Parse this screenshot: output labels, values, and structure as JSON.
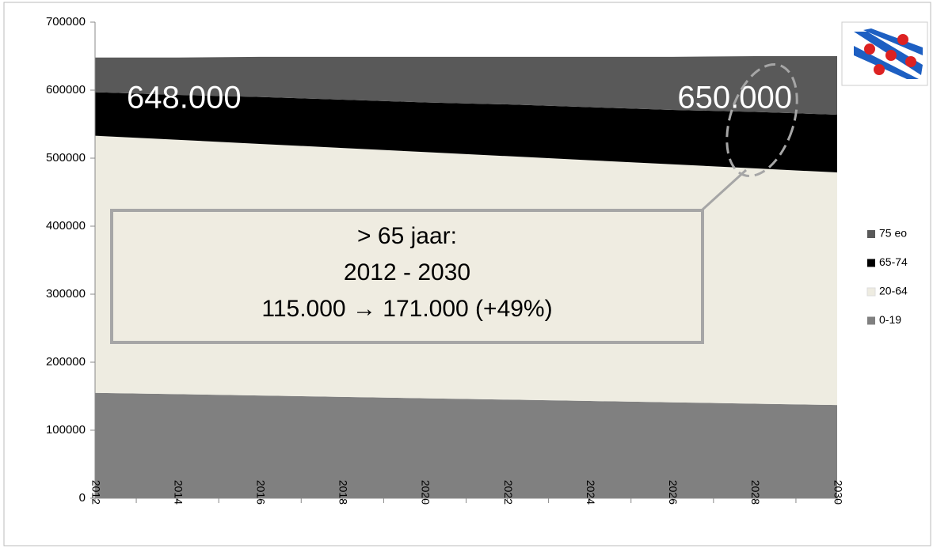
{
  "chart_data": {
    "type": "stacked_area",
    "x": [
      2012,
      2014,
      2016,
      2018,
      2020,
      2022,
      2024,
      2026,
      2028,
      2030
    ],
    "series": [
      {
        "name": "0-19",
        "color": "#808080",
        "values": [
          155000,
          153000,
          151000,
          149000,
          147000,
          145000,
          143000,
          141000,
          139000,
          137000
        ]
      },
      {
        "name": "20-64",
        "color": "#eeece1",
        "values": [
          378000,
          374000,
          370000,
          366000,
          362000,
          358000,
          354000,
          350000,
          346000,
          342000
        ]
      },
      {
        "name": "65-74",
        "color": "#000000",
        "values": [
          64000,
          66000,
          69000,
          71000,
          73000,
          76000,
          78000,
          80000,
          83000,
          85000
        ]
      },
      {
        "name": "75 eo",
        "color": "#595959",
        "values": [
          51000,
          55000,
          59000,
          63000,
          67000,
          70000,
          74000,
          78000,
          82000,
          86000
        ]
      }
    ],
    "xlim": [
      2012,
      2030
    ],
    "xticks": [
      2012,
      2014,
      2016,
      2018,
      2020,
      2022,
      2024,
      2026,
      2028,
      2030
    ],
    "ylim": [
      0,
      700000
    ],
    "yticks": [
      0,
      100000,
      200000,
      300000,
      400000,
      500000,
      600000,
      700000
    ],
    "annotations": [
      "648.000",
      "650.000"
    ],
    "callout": [
      "> 65 jaar:",
      "2012 - 2030",
      "115.000 → 171.000 (+49%)"
    ]
  }
}
